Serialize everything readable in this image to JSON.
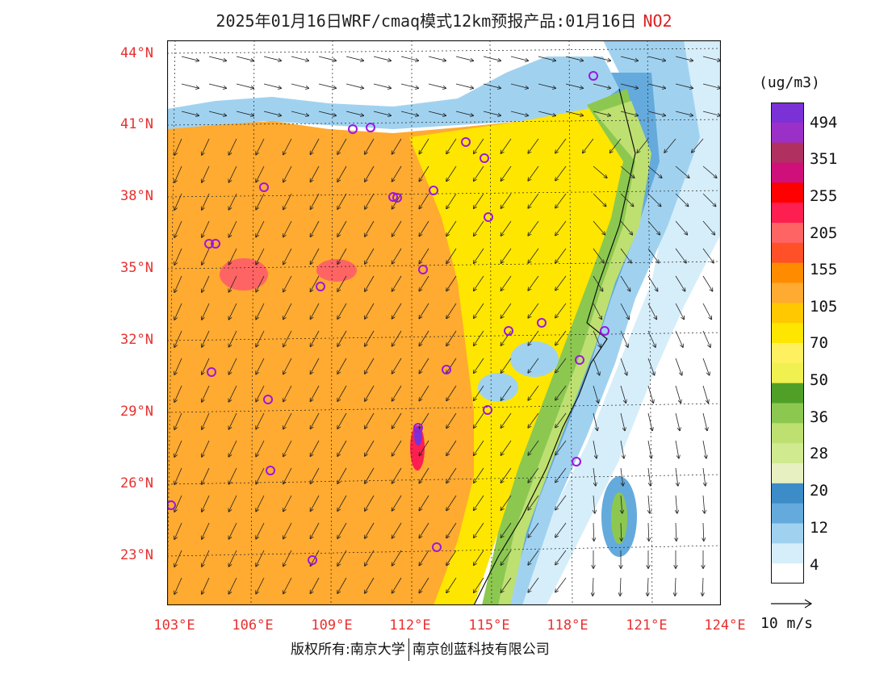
{
  "title": {
    "main": "2025年01月16日WRF/cmaq模式12km预报产品:01月16日",
    "pollutant": "NO2"
  },
  "axes": {
    "lat_labels": [
      "44°N",
      "41°N",
      "38°N",
      "35°N",
      "32°N",
      "29°N",
      "26°N",
      "23°N"
    ],
    "lon_labels": [
      "103°E",
      "106°E",
      "109°E",
      "112°E",
      "115°E",
      "118°E",
      "121°E",
      "124°E"
    ]
  },
  "colorbar": {
    "unit": "(ug/m3)",
    "labels": [
      "494",
      "351",
      "255",
      "205",
      "155",
      "105",
      "70",
      "50",
      "36",
      "28",
      "20",
      "12",
      "4"
    ],
    "colors": [
      "#7a32d6",
      "#9b30c8",
      "#b03060",
      "#d0107a",
      "#ff0000",
      "#ff1e50",
      "#ff6464",
      "#ff5028",
      "#ff8c00",
      "#ffaa30",
      "#ffc800",
      "#ffe600",
      "#fff060",
      "#f0f050",
      "#50a028",
      "#8cc850",
      "#bee070",
      "#d0ea90",
      "#e6f0c0",
      "#3c8cc8",
      "#64aadc",
      "#a0d2f0",
      "#d6eefa",
      "#ffffff"
    ]
  },
  "wind": {
    "reference_label": "10 m/s"
  },
  "credit": {
    "left": "版权所有:南京大学",
    "right": "南京创蓝科技有限公司"
  },
  "city_count": 28
}
